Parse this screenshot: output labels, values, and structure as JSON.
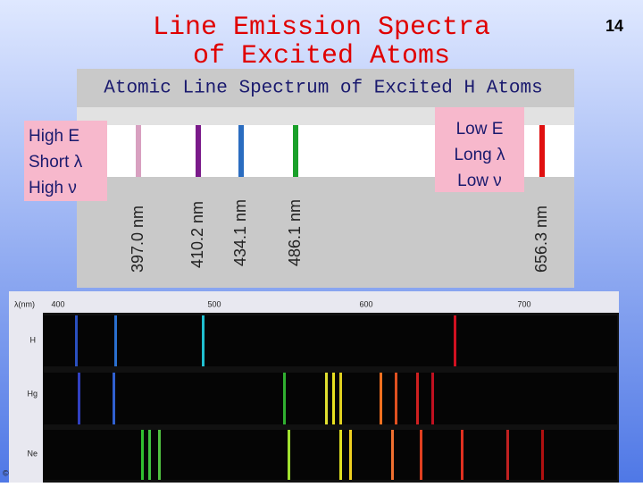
{
  "title": [
    "Line Emission Spectra",
    "of Excited Atoms"
  ],
  "slide_number": "14",
  "figure": {
    "title": "Atomic Line Spectrum of Excited H Atoms",
    "line_labels": [
      "397.0 nm",
      "410.2 nm",
      "434.1 nm",
      "486.1 nm",
      "656.3 nm"
    ]
  },
  "high_box": [
    "High E",
    "Short λ",
    "High ν"
  ],
  "low_box": [
    "Low E",
    "Long λ",
    "Low ν"
  ],
  "photo": {
    "axis_label": "λ(nm)",
    "ticks": [
      "400",
      "500",
      "600",
      "700"
    ],
    "rows": [
      "H",
      "Hg",
      "Ne"
    ]
  },
  "copyright": "©"
}
